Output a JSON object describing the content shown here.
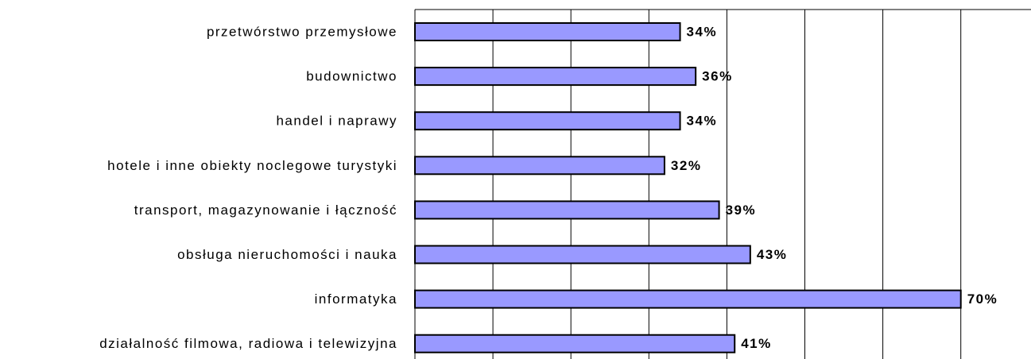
{
  "chart_data": {
    "type": "bar",
    "orientation": "horizontal",
    "categories": [
      "przetwórstwo przemysłowe",
      "budownictwo",
      "handel i naprawy",
      "hotele i inne obiekty noclegowe turystyki",
      "transport, magazynowanie i łączność",
      "obsługa nieruchomości i nauka",
      "informatyka",
      "działalność filmowa, radiowa i telewizyjna"
    ],
    "values": [
      34,
      36,
      34,
      32,
      39,
      43,
      70,
      41
    ],
    "value_labels": [
      "34%",
      "36%",
      "34%",
      "32%",
      "39%",
      "43%",
      "70%",
      "41%"
    ],
    "color": "#9999ff",
    "xlim": [
      0,
      79
    ],
    "xticks": [
      0,
      10,
      20,
      30,
      40,
      50,
      60,
      70
    ],
    "grid": true
  }
}
